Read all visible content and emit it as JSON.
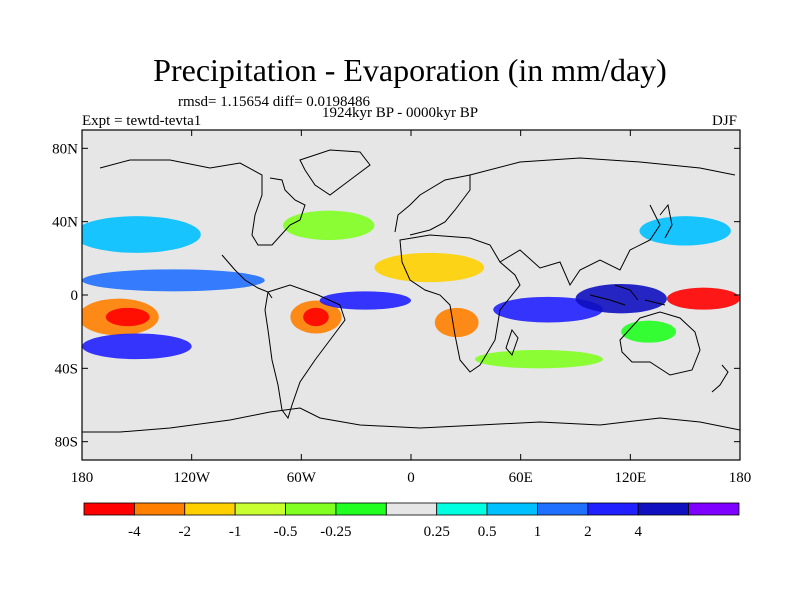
{
  "title": "Precipitation - Evaporation (in mm/day)",
  "stats": "rmsd= 1.15654 diff= 0.0198486",
  "period": "1924kyr BP - 0000kyr BP",
  "experiment": "Expt = tewtd-tevta1",
  "season": "DJF",
  "map": {
    "projection": "cylindrical-equidistant",
    "lon_range": [
      -180,
      180
    ],
    "lat_range": [
      -90,
      90
    ],
    "lat_ticks": [
      {
        "value": 80,
        "label": "80N"
      },
      {
        "value": 40,
        "label": "40N"
      },
      {
        "value": 0,
        "label": "0"
      },
      {
        "value": -40,
        "label": "40S"
      },
      {
        "value": -80,
        "label": "80S"
      }
    ],
    "lon_ticks": [
      {
        "value": -180,
        "label": "180"
      },
      {
        "value": -120,
        "label": "120W"
      },
      {
        "value": -60,
        "label": "60W"
      },
      {
        "value": 0,
        "label": "0"
      },
      {
        "value": 60,
        "label": "60E"
      },
      {
        "value": 120,
        "label": "120E"
      },
      {
        "value": 180,
        "label": "180"
      }
    ],
    "background_color": "#e6e6e6",
    "coastline_color": "#000000"
  },
  "colorbar": {
    "colors": [
      "#ff0000",
      "#ff8000",
      "#ffd000",
      "#c8ff30",
      "#80ff20",
      "#20ff20",
      "#e6e6e6",
      "#00ffe0",
      "#00c0ff",
      "#2070ff",
      "#2020ff",
      "#1010c0",
      "#8000ff"
    ],
    "labels": [
      "-4",
      "-2",
      "-1",
      "-0.5",
      "-0.25",
      "0.25",
      "0.5",
      "1",
      "2",
      "4"
    ],
    "label_positions": [
      1,
      2,
      3,
      4,
      5,
      7,
      8,
      9,
      10,
      11
    ]
  },
  "field_regions": [
    {
      "name": "east-pacific-dry",
      "lon": -160,
      "lat": -12,
      "rx": 22,
      "ry": 10,
      "color": "#ff8000"
    },
    {
      "name": "east-pacific-core",
      "lon": -155,
      "lat": -12,
      "rx": 12,
      "ry": 5,
      "color": "#ff0000"
    },
    {
      "name": "pacific-itcz",
      "lon": -130,
      "lat": 8,
      "rx": 50,
      "ry": 6,
      "color": "#2070ff"
    },
    {
      "name": "north-pacific-storm",
      "lon": -150,
      "lat": 33,
      "rx": 35,
      "ry": 10,
      "color": "#00c0ff"
    },
    {
      "name": "south-pacific-convergence",
      "lon": -150,
      "lat": -28,
      "rx": 30,
      "ry": 7,
      "color": "#2020ff"
    },
    {
      "name": "amazon-dry",
      "lon": -52,
      "lat": -12,
      "rx": 14,
      "ry": 9,
      "color": "#ff8000"
    },
    {
      "name": "amazon-core",
      "lon": -52,
      "lat": -12,
      "rx": 7,
      "ry": 5,
      "color": "#ff0000"
    },
    {
      "name": "atlantic-itcz",
      "lon": -25,
      "lat": -3,
      "rx": 25,
      "ry": 5,
      "color": "#2020ff"
    },
    {
      "name": "north-atlantic",
      "lon": -45,
      "lat": 38,
      "rx": 25,
      "ry": 8,
      "color": "#80ff20"
    },
    {
      "name": "sahara-belt",
      "lon": 10,
      "lat": 15,
      "rx": 30,
      "ry": 8,
      "color": "#ffd000"
    },
    {
      "name": "southern-africa-dry",
      "lon": 25,
      "lat": -15,
      "rx": 12,
      "ry": 8,
      "color": "#ff8000"
    },
    {
      "name": "indian-ocean-wet",
      "lon": 75,
      "lat": -8,
      "rx": 30,
      "ry": 7,
      "color": "#2020ff"
    },
    {
      "name": "maritime-continent",
      "lon": 115,
      "lat": -2,
      "rx": 25,
      "ry": 8,
      "color": "#1010c0"
    },
    {
      "name": "west-pacific-dry",
      "lon": 160,
      "lat": -2,
      "rx": 20,
      "ry": 6,
      "color": "#ff0000"
    },
    {
      "name": "kuroshio",
      "lon": 150,
      "lat": 35,
      "rx": 25,
      "ry": 8,
      "color": "#00c0ff"
    },
    {
      "name": "south-indian-belt",
      "lon": 70,
      "lat": -35,
      "rx": 35,
      "ry": 5,
      "color": "#80ff20"
    },
    {
      "name": "australia-wet",
      "lon": 130,
      "lat": -20,
      "rx": 15,
      "ry": 6,
      "color": "#20ff20"
    }
  ]
}
